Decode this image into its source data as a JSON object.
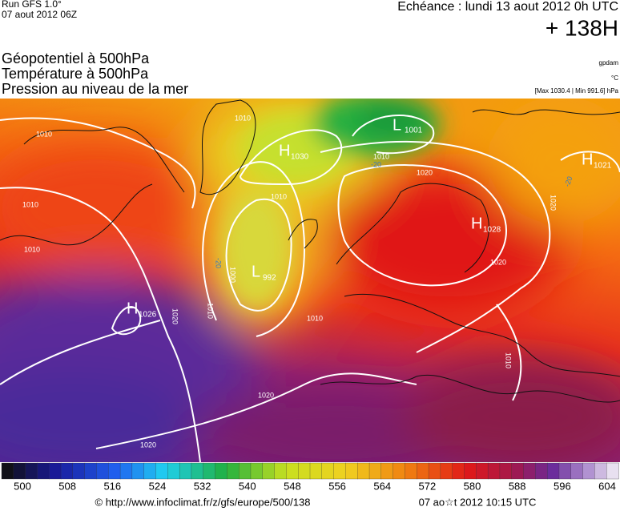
{
  "header": {
    "run": "Run GFS 1.0°",
    "date": "07 aout 2012 06Z",
    "echeance": "Echéance : lundi 13 aout 2012 0h UTC",
    "lead": "+ 138H"
  },
  "layers": [
    "Géopotentiel à 500hPa",
    "Température à 500hPa",
    "Pression au niveau de la mer"
  ],
  "units": [
    "gpdam",
    "°C",
    "[Max 1030.4 | Min 991.6] hPa"
  ],
  "centers": [
    {
      "type": "H",
      "value": "1030"
    },
    {
      "type": "H",
      "value": "1028"
    },
    {
      "type": "H",
      "value": "1021"
    },
    {
      "type": "H",
      "value": "1026"
    },
    {
      "type": "L",
      "value": "992"
    },
    {
      "type": "L",
      "value": "1001"
    }
  ],
  "isobar_labels": [
    "1010",
    "1010",
    "1010",
    "1010",
    "1010",
    "1010",
    "1010",
    "1010",
    "1000",
    "1020",
    "1020",
    "1020",
    "1020",
    "1020",
    "1020",
    "1010"
  ],
  "temperature_labels": [
    "-20",
    "-20",
    "-20"
  ],
  "colorbar": {
    "labels": [
      "500",
      "508",
      "516",
      "524",
      "532",
      "540",
      "548",
      "556",
      "564",
      "572",
      "580",
      "588",
      "596",
      "604"
    ]
  },
  "footer": {
    "source": "© http://www.infoclimat.fr/z/gfs/europe/500/138",
    "generated": "07 ao☆t 2012 10:15 UTC"
  }
}
